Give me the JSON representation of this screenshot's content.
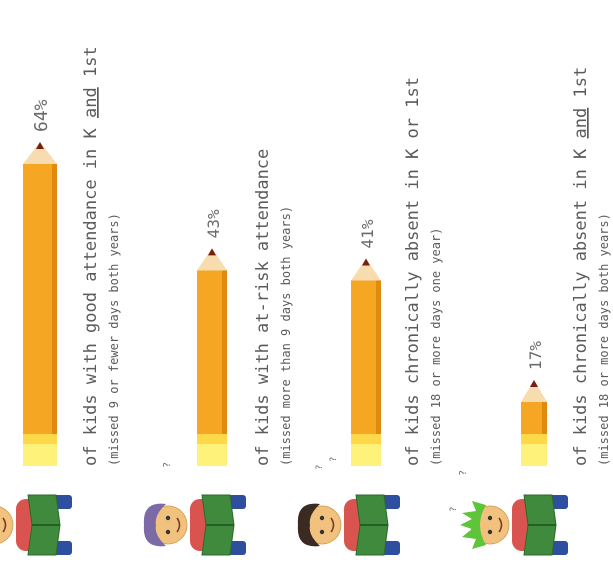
{
  "chart_data": {
    "type": "bar",
    "orientation": "vertical-rotated",
    "value_unit": "%",
    "ylim": [
      0,
      100
    ],
    "bars": [
      {
        "value": 64,
        "value_label": "64%",
        "label_parts": [
          {
            "text": "of kids with good attendance in K ",
            "underline": false
          },
          {
            "text": "and",
            "underline": true
          },
          {
            "text": " 1st",
            "underline": false
          }
        ],
        "sublabel": "(missed 9 or fewer days both years)",
        "character": "red-haired-kid-icon"
      },
      {
        "value": 43,
        "value_label": "43%",
        "label_parts": [
          {
            "text": "of kids with at-risk attendance",
            "underline": false
          }
        ],
        "sublabel": "(missed more than 9 days both years)",
        "character": "purple-haired-kid-icon"
      },
      {
        "value": 41,
        "value_label": "41%",
        "label_parts": [
          {
            "text": "of kids chronically absent in K or 1st",
            "underline": false
          }
        ],
        "sublabel": "(missed 18 or more days one year)",
        "character": "dark-haired-kid-icon"
      },
      {
        "value": 17,
        "value_label": "17%",
        "label_parts": [
          {
            "text": "of kids chronically absent in K ",
            "underline": false
          },
          {
            "text": "and",
            "underline": true
          },
          {
            "text": " 1st",
            "underline": false
          }
        ],
        "sublabel": "(missed 18 or more days both years)",
        "character": "green-haired-kid-icon"
      }
    ]
  },
  "colors": {
    "pencil_body": "#f5a623",
    "pencil_edge": "#e08a10",
    "pencil_band": "#ffd84a",
    "pencil_eraser": "#fff27a",
    "pencil_wood": "#f6dcae",
    "pencil_lead": "#7a1f10",
    "text": "#5b5b5b",
    "book_green": "#3f8a3c",
    "shirt_red": "#d9534f",
    "pants_blue": "#2e4fa0"
  },
  "question_marks": "?"
}
